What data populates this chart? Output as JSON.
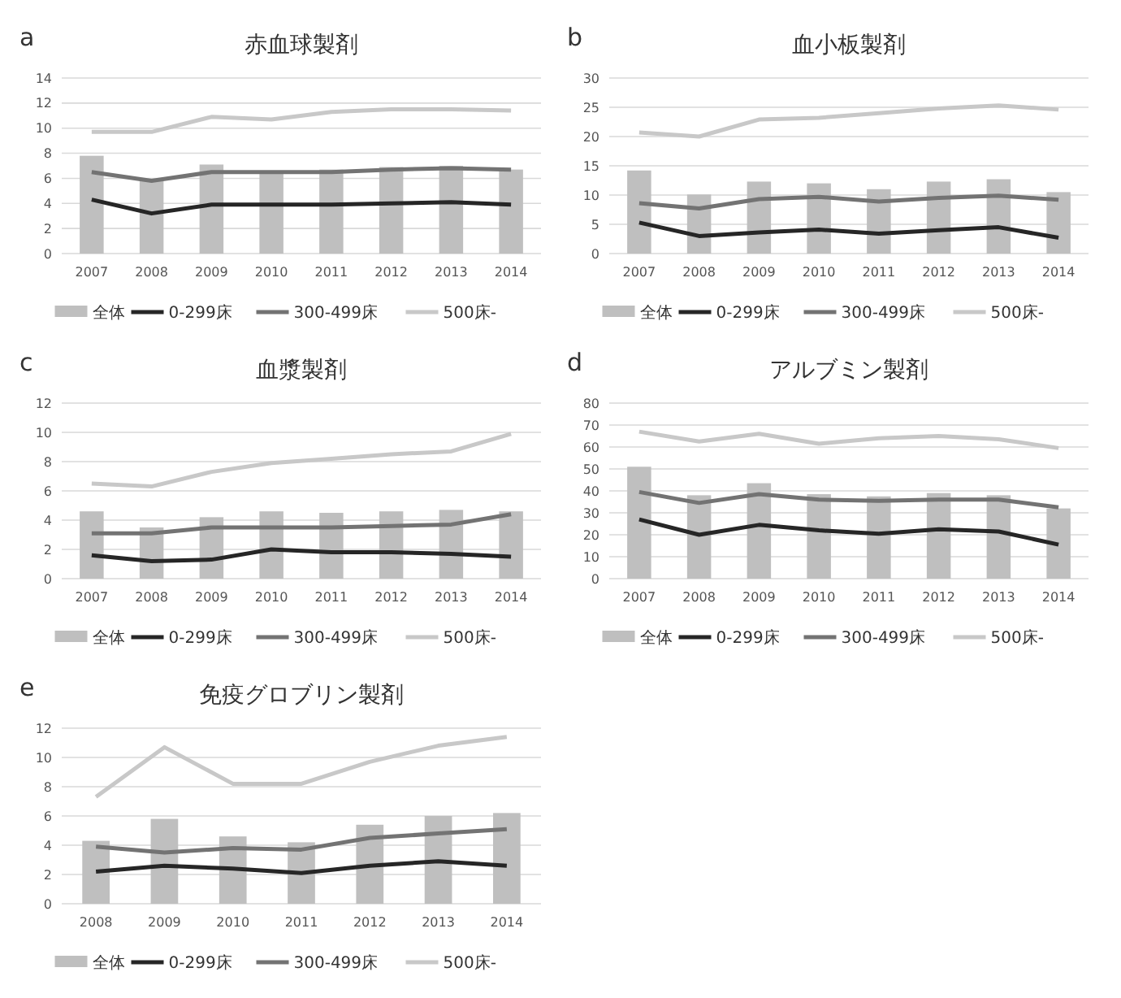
{
  "chart_data": [
    {
      "type": "bar",
      "title": "赤血球製剤",
      "annotations": [
        "a"
      ],
      "categories": [
        "2007",
        "2008",
        "2009",
        "2010",
        "2011",
        "2012",
        "2013",
        "2014"
      ],
      "ylim": [
        0,
        14
      ],
      "yticks": [
        0,
        2,
        4,
        6,
        8,
        10,
        12,
        14
      ],
      "grid": "y",
      "legend": "bottom",
      "series": [
        {
          "name": "全体",
          "color": "#bfbfbf",
          "values": [
            7.8,
            5.8,
            7.1,
            6.6,
            6.7,
            6.9,
            7.0,
            6.7
          ]
        },
        {
          "name": "0-299床",
          "type": "line",
          "color": "#262626",
          "values": [
            4.3,
            3.2,
            3.9,
            3.9,
            3.9,
            4.0,
            4.1,
            3.9
          ]
        },
        {
          "name": "300-499床",
          "type": "line",
          "color": "#737373",
          "values": [
            6.5,
            5.8,
            6.5,
            6.5,
            6.5,
            6.7,
            6.8,
            6.7
          ]
        },
        {
          "name": "500床-",
          "type": "line",
          "color": "#c8c8c8",
          "values": [
            9.7,
            9.7,
            10.9,
            10.7,
            11.3,
            11.5,
            11.5,
            11.4
          ]
        }
      ]
    },
    {
      "type": "bar",
      "title": "血小板製剤",
      "annotations": [
        "b"
      ],
      "categories": [
        "2007",
        "2008",
        "2009",
        "2010",
        "2011",
        "2012",
        "2013",
        "2014"
      ],
      "ylim": [
        0,
        30
      ],
      "yticks": [
        0,
        5,
        10,
        15,
        20,
        25,
        30
      ],
      "grid": "y",
      "legend": "bottom",
      "series": [
        {
          "name": "全体",
          "color": "#bfbfbf",
          "values": [
            14.2,
            10.1,
            12.3,
            12.0,
            11.0,
            12.3,
            12.7,
            10.5
          ]
        },
        {
          "name": "0-299床",
          "type": "line",
          "color": "#262626",
          "values": [
            5.3,
            3.0,
            3.6,
            4.1,
            3.4,
            4.0,
            4.5,
            2.7
          ]
        },
        {
          "name": "300-499床",
          "type": "line",
          "color": "#737373",
          "values": [
            8.6,
            7.7,
            9.3,
            9.7,
            8.9,
            9.5,
            9.9,
            9.2
          ]
        },
        {
          "name": "500床-",
          "type": "line",
          "color": "#c8c8c8",
          "values": [
            20.7,
            20.0,
            22.9,
            23.2,
            24.0,
            24.8,
            25.3,
            24.6
          ]
        }
      ]
    },
    {
      "type": "bar",
      "title": "血漿製剤",
      "annotations": [
        "c"
      ],
      "categories": [
        "2007",
        "2008",
        "2009",
        "2010",
        "2011",
        "2012",
        "2013",
        "2014"
      ],
      "ylim": [
        0,
        12
      ],
      "yticks": [
        0,
        2,
        4,
        6,
        8,
        10,
        12
      ],
      "grid": "y",
      "legend": "bottom",
      "series": [
        {
          "name": "全体",
          "color": "#bfbfbf",
          "values": [
            4.6,
            3.5,
            4.2,
            4.6,
            4.5,
            4.6,
            4.7,
            4.6
          ]
        },
        {
          "name": "0-299床",
          "type": "line",
          "color": "#262626",
          "values": [
            1.6,
            1.2,
            1.3,
            2.0,
            1.8,
            1.8,
            1.7,
            1.5
          ]
        },
        {
          "name": "300-499床",
          "type": "line",
          "color": "#737373",
          "values": [
            3.1,
            3.1,
            3.5,
            3.5,
            3.5,
            3.6,
            3.7,
            4.4
          ]
        },
        {
          "name": "500床-",
          "type": "line",
          "color": "#c8c8c8",
          "values": [
            6.5,
            6.3,
            7.3,
            7.9,
            8.2,
            8.5,
            8.7,
            9.9
          ]
        }
      ]
    },
    {
      "type": "bar",
      "title": "アルブミン製剤",
      "annotations": [
        "d"
      ],
      "categories": [
        "2007",
        "2008",
        "2009",
        "2010",
        "2011",
        "2012",
        "2013",
        "2014"
      ],
      "ylim": [
        0,
        80
      ],
      "yticks": [
        0,
        10,
        20,
        30,
        40,
        50,
        60,
        70,
        80
      ],
      "grid": "y",
      "legend": "bottom",
      "series": [
        {
          "name": "全体",
          "color": "#bfbfbf",
          "values": [
            51,
            38,
            43.5,
            38.5,
            37.5,
            39,
            38,
            32
          ]
        },
        {
          "name": "0-299床",
          "type": "line",
          "color": "#262626",
          "values": [
            27,
            20,
            24.5,
            22,
            20.5,
            22.5,
            21.5,
            15.5
          ]
        },
        {
          "name": "300-499床",
          "type": "line",
          "color": "#737373",
          "values": [
            39.5,
            34.5,
            38.5,
            36,
            35.5,
            36,
            36,
            32.5
          ]
        },
        {
          "name": "500床-",
          "type": "line",
          "color": "#c8c8c8",
          "values": [
            67,
            62.5,
            66,
            61.5,
            64,
            65,
            63.5,
            59.5
          ]
        }
      ]
    },
    {
      "type": "bar",
      "title": "免疫グロブリン製剤",
      "annotations": [
        "e"
      ],
      "categories": [
        "2008",
        "2009",
        "2010",
        "2011",
        "2012",
        "2013",
        "2014"
      ],
      "ylim": [
        0,
        12
      ],
      "yticks": [
        0,
        2,
        4,
        6,
        8,
        10,
        12
      ],
      "grid": "y",
      "legend": "bottom",
      "series": [
        {
          "name": "全体",
          "color": "#bfbfbf",
          "values": [
            4.3,
            5.8,
            4.6,
            4.2,
            5.4,
            6.0,
            6.2
          ]
        },
        {
          "name": "0-299床",
          "type": "line",
          "color": "#262626",
          "values": [
            2.2,
            2.6,
            2.4,
            2.1,
            2.6,
            2.9,
            2.6
          ]
        },
        {
          "name": "300-499床",
          "type": "line",
          "color": "#737373",
          "values": [
            3.9,
            3.5,
            3.8,
            3.7,
            4.5,
            4.8,
            5.1
          ]
        },
        {
          "name": "500床-",
          "type": "line",
          "color": "#c8c8c8",
          "values": [
            7.3,
            10.7,
            8.2,
            8.2,
            9.7,
            10.8,
            11.4
          ]
        }
      ]
    }
  ]
}
